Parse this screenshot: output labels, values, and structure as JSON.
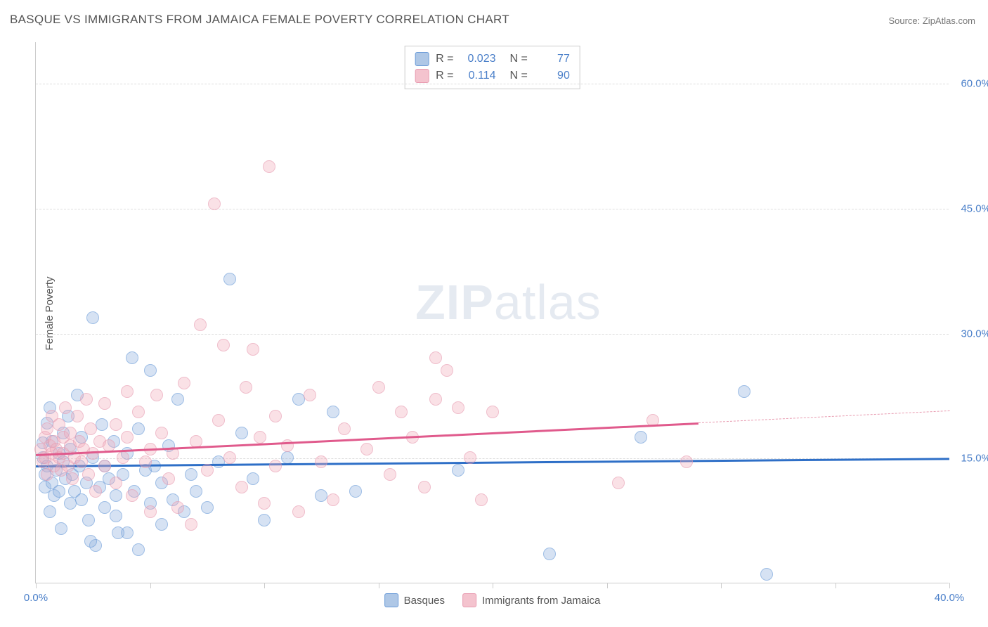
{
  "title": "BASQUE VS IMMIGRANTS FROM JAMAICA FEMALE POVERTY CORRELATION CHART",
  "source": "Source: ZipAtlas.com",
  "y_axis_label": "Female Poverty",
  "watermark": {
    "bold": "ZIP",
    "rest": "atlas"
  },
  "chart": {
    "type": "scatter",
    "xlim": [
      0,
      40
    ],
    "ylim": [
      0,
      65
    ],
    "x_ticks": [
      0,
      5,
      10,
      15,
      20,
      25,
      30,
      35,
      40
    ],
    "x_tick_labels": {
      "0": "0.0%",
      "40": "40.0%"
    },
    "y_gridlines": [
      15,
      30,
      45,
      60
    ],
    "y_tick_labels": [
      "15.0%",
      "30.0%",
      "45.0%",
      "60.0%"
    ],
    "background_color": "#ffffff",
    "grid_color": "#dddddd",
    "axis_color": "#cccccc",
    "label_color": "#4a7fc9",
    "marker_radius": 9,
    "series": [
      {
        "name": "Basques",
        "color_fill": "rgba(140,175,220,0.55)",
        "color_stroke": "#6a9bd8",
        "trend_color": "#2e6fc7",
        "R": "0.023",
        "N": "77",
        "trend": {
          "x1": 0,
          "y1": 14.2,
          "x2": 40,
          "y2": 15.1,
          "extrap_from": 40
        },
        "points": [
          [
            0.3,
            15.0
          ],
          [
            0.3,
            16.8
          ],
          [
            0.4,
            13.0
          ],
          [
            0.4,
            11.5
          ],
          [
            0.5,
            19.2
          ],
          [
            0.5,
            14.0
          ],
          [
            0.6,
            21.0
          ],
          [
            0.7,
            12.0
          ],
          [
            0.7,
            17.0
          ],
          [
            0.8,
            10.5
          ],
          [
            0.9,
            13.5
          ],
          [
            1.0,
            15.5
          ],
          [
            1.0,
            11.0
          ],
          [
            1.2,
            18.0
          ],
          [
            1.2,
            14.5
          ],
          [
            1.3,
            12.5
          ],
          [
            1.4,
            20.0
          ],
          [
            1.5,
            9.5
          ],
          [
            1.5,
            16.0
          ],
          [
            1.6,
            13.0
          ],
          [
            1.7,
            11.0
          ],
          [
            1.8,
            22.5
          ],
          [
            1.9,
            14.0
          ],
          [
            2.0,
            10.0
          ],
          [
            2.0,
            17.5
          ],
          [
            2.2,
            12.0
          ],
          [
            2.3,
            7.5
          ],
          [
            2.5,
            15.0
          ],
          [
            2.5,
            31.8
          ],
          [
            2.6,
            4.5
          ],
          [
            2.8,
            11.5
          ],
          [
            2.9,
            19.0
          ],
          [
            3.0,
            9.0
          ],
          [
            3.0,
            14.0
          ],
          [
            3.2,
            12.5
          ],
          [
            3.4,
            17.0
          ],
          [
            3.5,
            10.5
          ],
          [
            3.5,
            8.0
          ],
          [
            3.8,
            13.0
          ],
          [
            4.0,
            6.0
          ],
          [
            4.0,
            15.5
          ],
          [
            4.2,
            27.0
          ],
          [
            4.3,
            11.0
          ],
          [
            4.5,
            4.0
          ],
          [
            4.5,
            18.5
          ],
          [
            4.8,
            13.5
          ],
          [
            5.0,
            25.5
          ],
          [
            5.0,
            9.5
          ],
          [
            5.2,
            14.0
          ],
          [
            5.5,
            12.0
          ],
          [
            5.5,
            7.0
          ],
          [
            5.8,
            16.5
          ],
          [
            6.0,
            10.0
          ],
          [
            6.2,
            22.0
          ],
          [
            6.5,
            8.5
          ],
          [
            6.8,
            13.0
          ],
          [
            7.0,
            11.0
          ],
          [
            7.5,
            9.0
          ],
          [
            8.0,
            14.5
          ],
          [
            8.5,
            36.5
          ],
          [
            9.0,
            18.0
          ],
          [
            9.5,
            12.5
          ],
          [
            10.0,
            7.5
          ],
          [
            11.0,
            15.0
          ],
          [
            11.5,
            22.0
          ],
          [
            12.5,
            10.5
          ],
          [
            13.0,
            20.5
          ],
          [
            14.0,
            11.0
          ],
          [
            18.5,
            13.5
          ],
          [
            22.5,
            3.5
          ],
          [
            26.5,
            17.5
          ],
          [
            31.0,
            23.0
          ],
          [
            32.0,
            1.0
          ],
          [
            0.6,
            8.5
          ],
          [
            1.1,
            6.5
          ],
          [
            2.4,
            5.0
          ],
          [
            3.6,
            6.0
          ]
        ]
      },
      {
        "name": "Immigrants from Jamaica",
        "color_fill": "rgba(240,170,185,0.55)",
        "color_stroke": "#e89bb0",
        "trend_color": "#e05a8c",
        "R": "0.114",
        "N": "90",
        "trend": {
          "x1": 0,
          "y1": 15.5,
          "x2": 29,
          "y2": 19.3,
          "extrap_from": 29
        },
        "points": [
          [
            0.2,
            16.0
          ],
          [
            0.3,
            14.5
          ],
          [
            0.4,
            17.5
          ],
          [
            0.4,
            15.0
          ],
          [
            0.5,
            13.0
          ],
          [
            0.5,
            18.5
          ],
          [
            0.6,
            16.5
          ],
          [
            0.7,
            15.5
          ],
          [
            0.7,
            20.0
          ],
          [
            0.8,
            14.0
          ],
          [
            0.8,
            17.0
          ],
          [
            0.9,
            16.0
          ],
          [
            1.0,
            15.0
          ],
          [
            1.0,
            19.0
          ],
          [
            1.1,
            13.5
          ],
          [
            1.2,
            17.5
          ],
          [
            1.2,
            15.5
          ],
          [
            1.3,
            21.0
          ],
          [
            1.4,
            14.0
          ],
          [
            1.5,
            16.5
          ],
          [
            1.5,
            18.0
          ],
          [
            1.6,
            12.5
          ],
          [
            1.7,
            15.0
          ],
          [
            1.8,
            20.0
          ],
          [
            1.9,
            17.0
          ],
          [
            2.0,
            14.5
          ],
          [
            2.1,
            16.0
          ],
          [
            2.2,
            22.0
          ],
          [
            2.3,
            13.0
          ],
          [
            2.4,
            18.5
          ],
          [
            2.5,
            15.5
          ],
          [
            2.6,
            11.0
          ],
          [
            2.8,
            17.0
          ],
          [
            3.0,
            14.0
          ],
          [
            3.0,
            21.5
          ],
          [
            3.2,
            16.5
          ],
          [
            3.5,
            12.0
          ],
          [
            3.5,
            19.0
          ],
          [
            3.8,
            15.0
          ],
          [
            4.0,
            23.0
          ],
          [
            4.0,
            17.5
          ],
          [
            4.2,
            10.5
          ],
          [
            4.5,
            20.5
          ],
          [
            4.8,
            14.5
          ],
          [
            5.0,
            16.0
          ],
          [
            5.0,
            8.5
          ],
          [
            5.3,
            22.5
          ],
          [
            5.5,
            18.0
          ],
          [
            5.8,
            12.5
          ],
          [
            6.0,
            15.5
          ],
          [
            6.2,
            9.0
          ],
          [
            6.5,
            24.0
          ],
          [
            6.8,
            7.0
          ],
          [
            7.0,
            17.0
          ],
          [
            7.2,
            31.0
          ],
          [
            7.5,
            13.5
          ],
          [
            7.8,
            45.5
          ],
          [
            8.0,
            19.5
          ],
          [
            8.2,
            28.5
          ],
          [
            8.5,
            15.0
          ],
          [
            9.0,
            11.5
          ],
          [
            9.2,
            23.5
          ],
          [
            9.5,
            28.0
          ],
          [
            9.8,
            17.5
          ],
          [
            10.0,
            9.5
          ],
          [
            10.2,
            50.0
          ],
          [
            10.5,
            20.0
          ],
          [
            10.5,
            14.0
          ],
          [
            11.0,
            16.5
          ],
          [
            11.5,
            8.5
          ],
          [
            12.0,
            22.5
          ],
          [
            12.5,
            14.5
          ],
          [
            13.0,
            10.0
          ],
          [
            13.5,
            18.5
          ],
          [
            14.5,
            16.0
          ],
          [
            15.0,
            23.5
          ],
          [
            15.5,
            13.0
          ],
          [
            16.0,
            20.5
          ],
          [
            16.5,
            17.5
          ],
          [
            17.0,
            11.5
          ],
          [
            17.5,
            22.0
          ],
          [
            17.5,
            27.0
          ],
          [
            18.0,
            25.5
          ],
          [
            18.5,
            21.0
          ],
          [
            19.0,
            15.0
          ],
          [
            19.5,
            10.0
          ],
          [
            20.0,
            20.5
          ],
          [
            25.5,
            12.0
          ],
          [
            27.0,
            19.5
          ],
          [
            28.5,
            14.5
          ]
        ]
      }
    ]
  },
  "stat_box": {
    "rows": [
      {
        "swatch": "blue",
        "r_label": "R =",
        "r_val": "0.023",
        "n_label": "N =",
        "n_val": "77"
      },
      {
        "swatch": "pink",
        "r_label": "R =",
        "r_val": "0.114",
        "n_label": "N =",
        "n_val": "90"
      }
    ]
  },
  "legend": [
    {
      "swatch": "blue",
      "label": "Basques"
    },
    {
      "swatch": "pink",
      "label": "Immigrants from Jamaica"
    }
  ]
}
